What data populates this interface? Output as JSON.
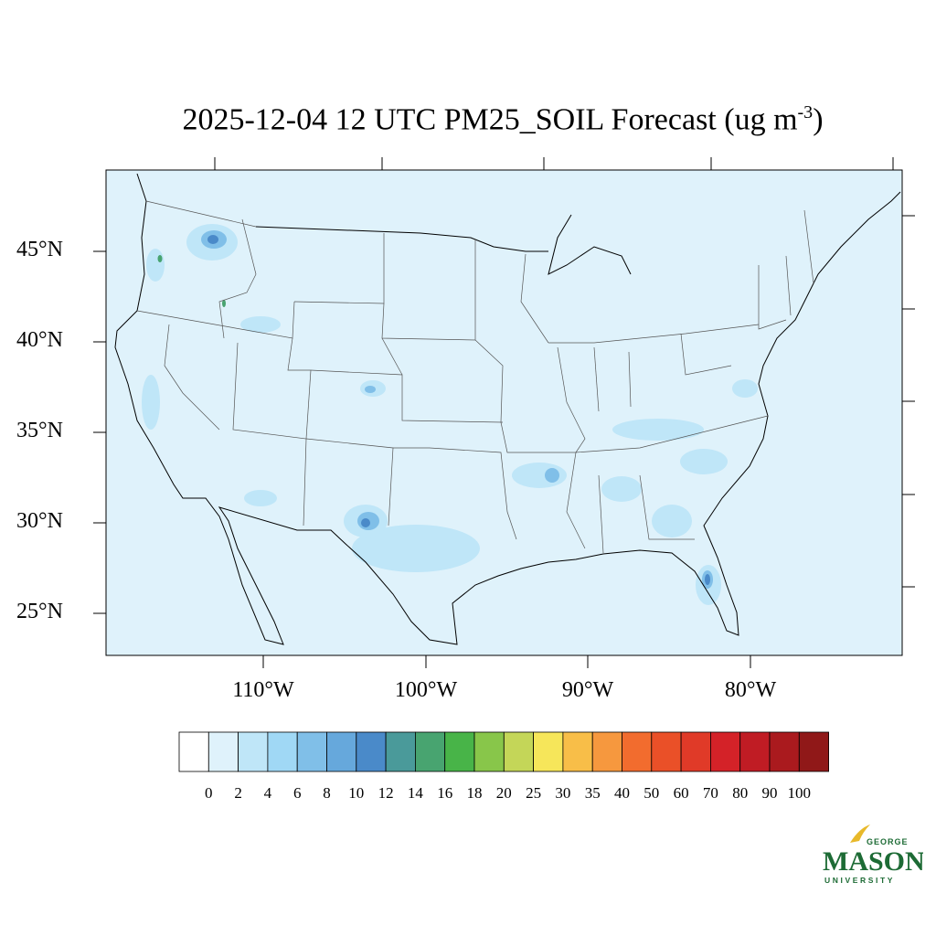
{
  "title": {
    "main": "2025-12-04 12 UTC PM25_SOIL Forecast (ug m",
    "sup": "-3",
    "end": ")"
  },
  "lat_labels": [
    "45°N",
    "40°N",
    "35°N",
    "30°N",
    "25°N"
  ],
  "lon_labels": [
    "110°W",
    "100°W",
    "90°W",
    "80°W"
  ],
  "colorbar": {
    "labels": [
      "0",
      "2",
      "4",
      "6",
      "8",
      "10",
      "12",
      "14",
      "16",
      "18",
      "20",
      "25",
      "30",
      "35",
      "40",
      "50",
      "60",
      "70",
      "80",
      "90",
      "100"
    ],
    "colors": [
      "#ffffff",
      "#dff2fb",
      "#bfe6f8",
      "#a0d8f5",
      "#80bfe8",
      "#66a8dc",
      "#4a8ac9",
      "#4a9a9a",
      "#48a470",
      "#48b448",
      "#88c64a",
      "#c4d658",
      "#f6e65a",
      "#f8be48",
      "#f6983e",
      "#f26c2e",
      "#ea5028",
      "#e03a28",
      "#d42228",
      "#c01c24",
      "#aa1a1e",
      "#901818"
    ]
  },
  "logo": {
    "line1": "GEORGE",
    "line2": "MASON",
    "line3": "UNIVERSITY",
    "color": "#1d6b35",
    "accent": "#e8b92a"
  },
  "map_colors": {
    "background": "#dff2fb",
    "light": "#bfe6f8",
    "medium": "#80bfe8",
    "dark": "#4a8ac9",
    "green": "#48a470"
  }
}
